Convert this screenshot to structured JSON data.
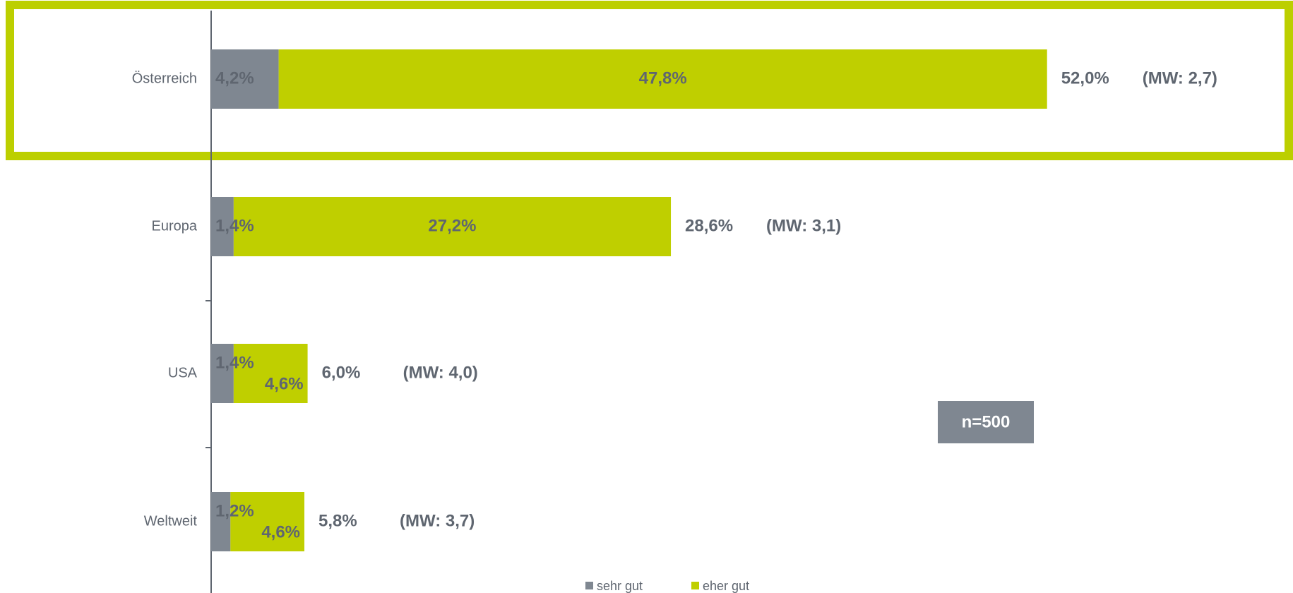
{
  "chart_data": {
    "type": "stacked-barh",
    "categories": [
      "Österreich",
      "Europa",
      "USA",
      "Weltweit"
    ],
    "series": [
      {
        "name": "sehr gut",
        "color": "#7f8791",
        "values": [
          4.2,
          1.4,
          1.4,
          1.2
        ],
        "value_labels": [
          "4,2%",
          "1,4%",
          "1,4%",
          "1,2%"
        ]
      },
      {
        "name": "eher gut",
        "color": "#bfcf00",
        "values": [
          47.8,
          27.2,
          4.6,
          4.6
        ],
        "value_labels": [
          "47,8%",
          "27,2%",
          "4,6%",
          "4,6%"
        ]
      }
    ],
    "total_labels": [
      "52,0%",
      "28,6%",
      "6,0%",
      "5,8%"
    ],
    "mw_labels": [
      "(MW: 2,7)",
      "(MW: 3,1)",
      "(MW: 4,0)",
      "(MW: 3,7)"
    ],
    "annotation": "n=500",
    "xlim": [
      0,
      67.3
    ],
    "legend": "bottom"
  }
}
